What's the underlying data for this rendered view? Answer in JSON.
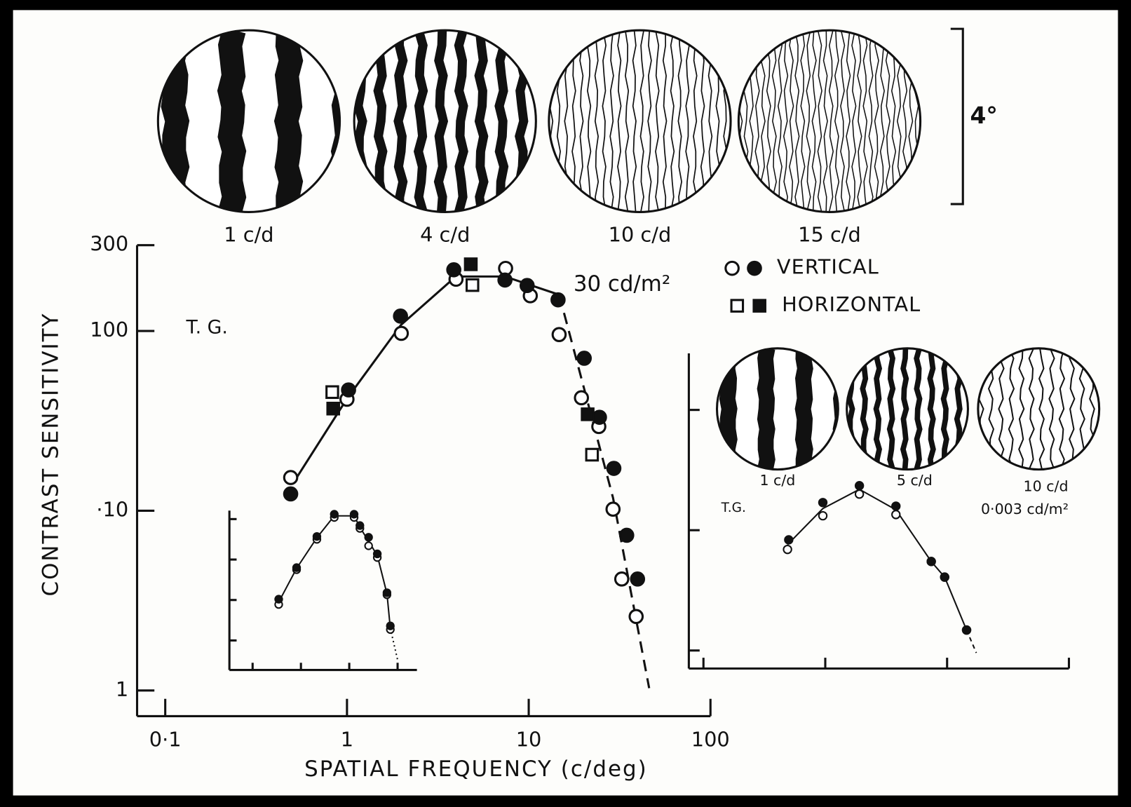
{
  "chart_data": [
    {
      "type": "scatter",
      "xlog": true,
      "ylog": true,
      "xlabel": "SPATIAL FREQUENCY (c/deg)",
      "ylabel": "CONTRAST SENSITIVITY",
      "xlim": [
        0.07,
        100
      ],
      "ylim": [
        0.72,
        300
      ],
      "xticks": [
        {
          "value": 0.1,
          "label": "0·1"
        },
        1,
        10,
        100
      ],
      "yticks": [
        1,
        {
          "value": 10,
          "label": "·10"
        },
        100,
        300
      ],
      "annotations": [
        "T. G.",
        "30 cd/m²"
      ],
      "gratings": [
        "1 c/d",
        "4 c/d",
        "10 c/d",
        "15 c/d"
      ],
      "grating_scale": "4°",
      "legend": [
        {
          "label": "VERTICAL",
          "markers": [
            "circle",
            "circle"
          ],
          "filled": [
            false,
            true
          ]
        },
        {
          "label": "HORIZONTAL",
          "markers": [
            "square",
            "square"
          ],
          "filled": [
            false,
            true
          ]
        }
      ],
      "series": [
        {
          "marker": "circle",
          "filled": false,
          "color": "#111111",
          "x": [
            0.49,
            1.0,
            1.99,
            3.98,
            7.46,
            10.2,
            14.7,
            19.5,
            24.3,
            29.1,
            32.5,
            39
          ],
          "values": [
            15.3,
            41.7,
            97,
            194,
            223,
            157,
            95.5,
            42.5,
            29.4,
            10.2,
            4.17,
            2.58
          ]
        },
        {
          "marker": "circle",
          "filled": true,
          "color": "#111111",
          "x": [
            0.49,
            1.02,
            1.97,
            3.87,
            7.4,
            9.8,
            14.5,
            20.2,
            24.5,
            29.4,
            34.6,
            39.7
          ],
          "values": [
            12.4,
            47,
            121,
            219,
            192,
            179,
            149,
            70.5,
            33.1,
            17.2,
            7.3,
            4.17
          ]
        },
        {
          "marker": "square",
          "filled": false,
          "color": "#111111",
          "x": [
            0.83,
            4.9,
            22.3
          ],
          "values": [
            45.7,
            180,
            20.5
          ]
        },
        {
          "marker": "square",
          "filled": true,
          "color": "#111111",
          "x": [
            0.84,
            4.8,
            21.1
          ],
          "values": [
            37,
            235,
            34.4
          ]
        }
      ],
      "fits": [
        {
          "line_style": "solid",
          "x": [
            0.52,
            1.0,
            1.98,
            3.97,
            7.4,
            14.7
          ],
          "y": [
            14.9,
            42,
            108,
            201,
            201,
            159
          ]
        },
        {
          "line_style": "dashed",
          "x": [
            14.7,
            18.4,
            29.1,
            46
          ],
          "y": [
            159,
            68,
            11.8,
            1.03
          ]
        }
      ]
    },
    {
      "type": "scatter",
      "xlim": [
        -0.48,
        3.4
      ],
      "ylim": [
        -0.73,
        3.21
      ],
      "xticks": [
        0,
        1,
        2,
        3
      ],
      "yticks": [
        0,
        1,
        2,
        3
      ],
      "series": [
        {
          "marker": "circle",
          "filled": false,
          "color": "#111111",
          "x": [
            0.54,
            0.91,
            1.33,
            1.69,
            2.1,
            2.22,
            2.4,
            2.58,
            2.78,
            2.85
          ],
          "values": [
            0.89,
            1.75,
            2.5,
            3.04,
            3.04,
            2.77,
            2.34,
            2.05,
            1.13,
            0.27
          ]
        },
        {
          "marker": "circle",
          "filled": true,
          "color": "#111111",
          "x": [
            0.54,
            0.91,
            1.33,
            1.69,
            2.1,
            2.22,
            2.4,
            2.58,
            2.78,
            2.85
          ],
          "values": [
            1.02,
            1.8,
            2.57,
            3.12,
            3.12,
            2.84,
            2.55,
            2.14,
            1.18,
            0.36
          ]
        }
      ],
      "fits": [
        {
          "line_style": "solid",
          "x": [
            0.54,
            0.91,
            1.33,
            1.69,
            2.1,
            2.22,
            2.4,
            2.58,
            2.78,
            2.85
          ],
          "y": [
            0.95,
            1.78,
            2.54,
            3.08,
            3.08,
            2.8,
            2.45,
            2.1,
            1.15,
            0.3
          ]
        },
        {
          "line_style": "dotted",
          "x": [
            2.85,
            3.0
          ],
          "y": [
            0.3,
            -0.48
          ]
        }
      ]
    },
    {
      "type": "scatter",
      "xlim": [
        -0.12,
        3
      ],
      "ylim": [
        -0.15,
        2.47
      ],
      "xticks": [
        0,
        1,
        2,
        3
      ],
      "yticks": [
        0,
        1,
        2
      ],
      "annotations": [
        "T.G.",
        "0·003 cd/m²"
      ],
      "gratings": [
        "1 c/d",
        "5 c/d",
        "10 c/d"
      ],
      "series": [
        {
          "marker": "circle",
          "filled": false,
          "color": "#111111",
          "x": [
            0.69,
            0.98,
            1.28,
            1.58,
            1.87,
            1.98,
            2.16
          ],
          "values": [
            0.84,
            1.12,
            1.3,
            1.13,
            0.74,
            0.61,
            0.17
          ]
        },
        {
          "marker": "circle",
          "filled": true,
          "color": "#111111",
          "x": [
            0.7,
            0.98,
            1.28,
            1.58,
            1.87,
            1.98,
            2.16
          ],
          "values": [
            0.92,
            1.23,
            1.37,
            1.2,
            0.74,
            0.61,
            0.17
          ]
        }
      ],
      "fits": [
        {
          "line_style": "solid",
          "x": [
            0.69,
            0.98,
            1.28,
            1.58,
            1.87,
            1.98,
            2.16
          ],
          "y": [
            0.88,
            1.18,
            1.34,
            1.17,
            0.74,
            0.61,
            0.17
          ]
        },
        {
          "line_style": "dashed",
          "x": [
            2.16,
            2.24
          ],
          "y": [
            0.17,
            -0.02
          ]
        }
      ]
    }
  ]
}
